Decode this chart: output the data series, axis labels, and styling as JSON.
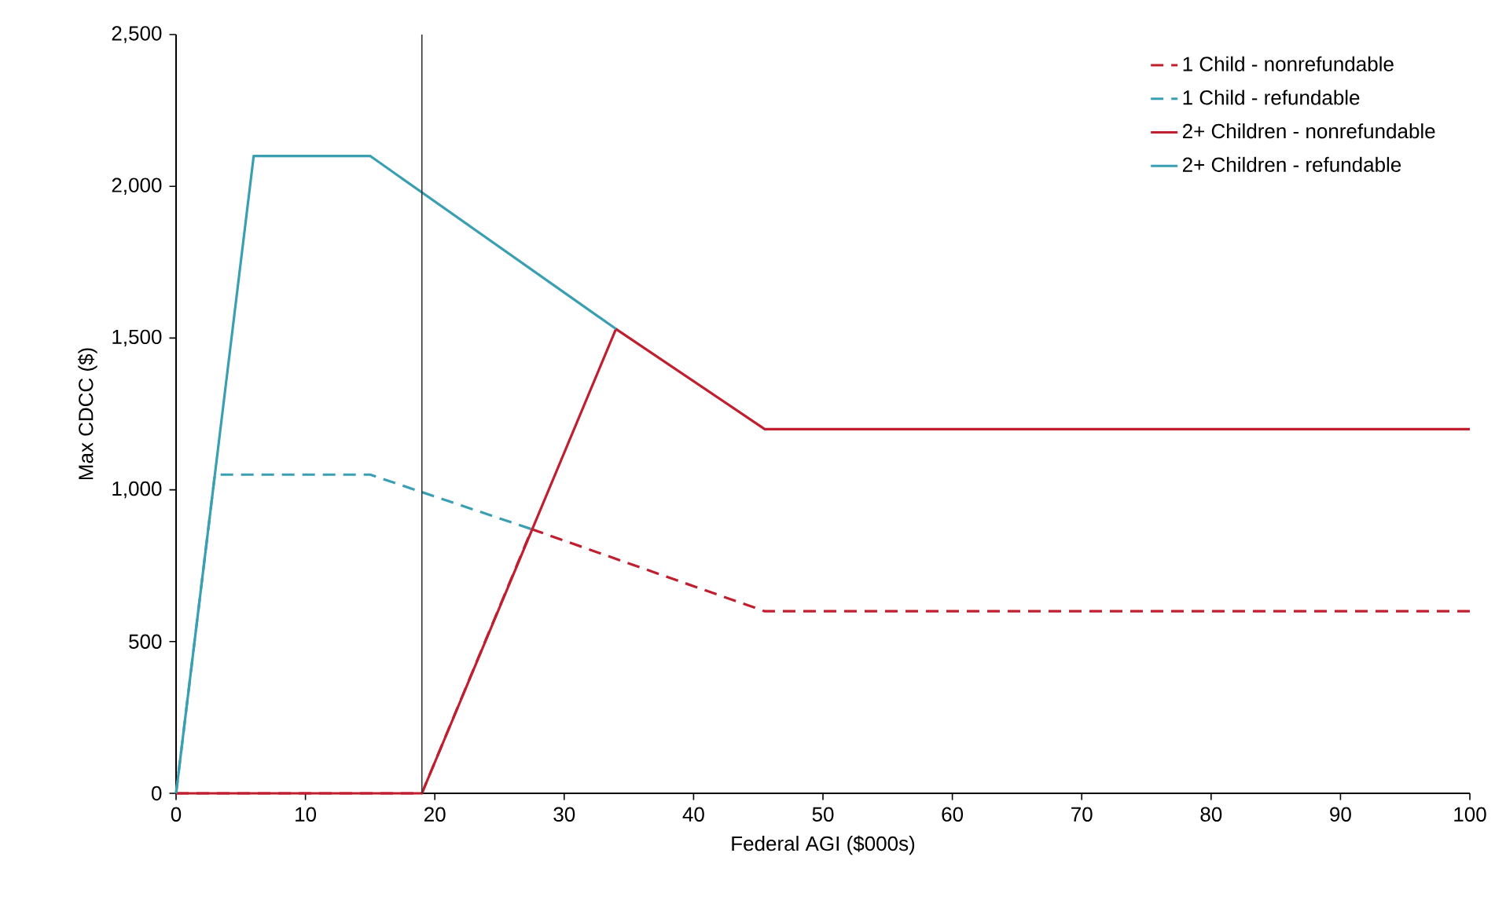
{
  "chart_data": {
    "type": "line",
    "xlabel": "Federal AGI ($000s)",
    "ylabel": "Max CDCC ($)",
    "xlim": [
      0,
      100
    ],
    "xticks": [
      0,
      10,
      20,
      30,
      40,
      50,
      60,
      70,
      80,
      90,
      100
    ],
    "ylim": [
      0,
      2500
    ],
    "yticks": [
      0,
      500,
      {
        "value": 1000,
        "label": "1,000"
      },
      {
        "value": 1500,
        "label": "1,500"
      },
      {
        "value": 2000,
        "label": "2,000"
      },
      {
        "value": 2500,
        "label": "2,500"
      }
    ],
    "grid": false,
    "legend": "top right",
    "marker": "none",
    "ref_lines": [
      {
        "axis": "x",
        "value": 19,
        "color": "#333333"
      }
    ],
    "series": [
      {
        "name": "1 Child - nonrefundable",
        "color": "#c01f2f",
        "line_style": "dashed",
        "x": [
          0,
          19,
          27.5,
          45.5,
          100
        ],
        "values": [
          0,
          0,
          870,
          600,
          600
        ]
      },
      {
        "name": "1 Child - refundable",
        "color": "#3a9fb2",
        "line_style": "dashed",
        "x": [
          0,
          3,
          15,
          27.5
        ],
        "values": [
          0,
          1050,
          1050,
          870
        ]
      },
      {
        "name": "2+ Children - nonrefundable",
        "color": "#c01f2f",
        "line_style": "solid",
        "x": [
          0,
          19,
          34,
          45.5,
          100
        ],
        "values": [
          0,
          0,
          1530,
          1200,
          1200
        ]
      },
      {
        "name": "2+ Children - refundable",
        "color": "#3a9fb2",
        "line_style": "solid",
        "x": [
          0,
          6,
          15,
          34
        ],
        "values": [
          0,
          2100,
          2100,
          1530
        ]
      }
    ]
  }
}
